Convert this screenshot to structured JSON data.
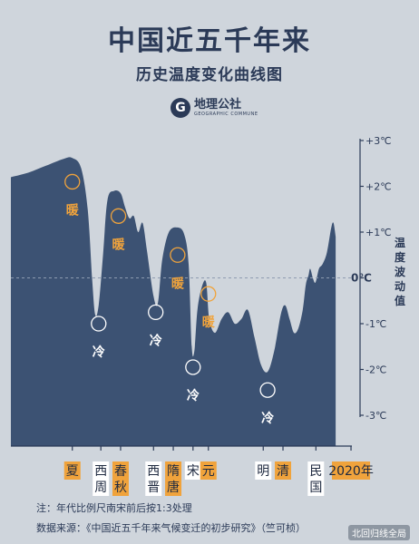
{
  "header": {
    "title": "中国近五千年来",
    "subtitle": "历史温度变化曲线图",
    "logo_mark": "G",
    "logo_name": "地理公社",
    "logo_sub": "GEOGRAPHIC COMMUNE"
  },
  "footer": {
    "note": "注：年代比例尺南宋前后按1:3处理",
    "source": "数据来源：《中国近五千年来气候变迁的初步研究》（竺可桢）",
    "watermark": "北回归线全局"
  },
  "chart_data": {
    "type": "area",
    "title": "中国近五千年来",
    "subtitle": "历史温度变化曲线图",
    "ylabel": "温度波动值",
    "ylim": [
      -3,
      3
    ],
    "yticks": [
      "+3℃",
      "+2℃",
      "+1℃",
      "0℃",
      "-1℃",
      "-2℃",
      "-3℃"
    ],
    "x_range": [
      0,
      100
    ],
    "series": [
      {
        "points": [
          [
            0,
            2.2
          ],
          [
            4,
            2.3
          ],
          [
            8,
            2.45
          ],
          [
            12,
            2.6
          ],
          [
            14,
            2.62
          ],
          [
            16,
            2.4
          ],
          [
            17.5,
            1.5
          ],
          [
            18.5,
            0.0
          ],
          [
            19.2,
            -0.8
          ],
          [
            20,
            -0.6
          ],
          [
            21,
            0.5
          ],
          [
            22,
            1.7
          ],
          [
            23.5,
            1.9
          ],
          [
            25,
            1.85
          ],
          [
            26,
            1.55
          ],
          [
            27,
            1.3
          ],
          [
            28,
            1.35
          ],
          [
            29,
            1.0
          ],
          [
            30,
            1.2
          ],
          [
            31,
            0.6
          ],
          [
            32.5,
            -0.4
          ],
          [
            33.5,
            -0.55
          ],
          [
            34.5,
            0.4
          ],
          [
            36,
            1.0
          ],
          [
            38,
            1.1
          ],
          [
            39.5,
            0.95
          ],
          [
            40.5,
            0.3
          ],
          [
            41.2,
            -1.5
          ],
          [
            41.8,
            -1.6
          ],
          [
            42.5,
            -0.7
          ],
          [
            43.5,
            -0.2
          ],
          [
            44.5,
            -0.1
          ],
          [
            45.2,
            -0.9
          ],
          [
            46.5,
            -1.2
          ],
          [
            48,
            -0.9
          ],
          [
            49.5,
            -0.75
          ],
          [
            51,
            -1.0
          ],
          [
            52.5,
            -0.9
          ],
          [
            54,
            -0.7
          ],
          [
            55.5,
            -1.3
          ],
          [
            57,
            -1.9
          ],
          [
            58.5,
            -2.05
          ],
          [
            60,
            -1.6
          ],
          [
            61.5,
            -0.8
          ],
          [
            62.5,
            -0.6
          ],
          [
            63.5,
            -0.9
          ],
          [
            64.5,
            -1.2
          ],
          [
            65.5,
            -1.1
          ],
          [
            66.5,
            -0.7
          ],
          [
            67.2,
            -0.15
          ],
          [
            67.8,
            0.05
          ],
          [
            68.2,
            0.2
          ],
          [
            68.8,
            0.0
          ],
          [
            69.4,
            -0.1
          ],
          [
            70.2,
            0.2
          ],
          [
            71,
            0.3
          ],
          [
            72,
            0.55
          ],
          [
            73,
            1.1
          ],
          [
            73.5,
            1.2
          ],
          [
            74,
            0.9
          ]
        ]
      }
    ],
    "annotations": [
      {
        "num": "①",
        "state": "暖",
        "x": 14,
        "y": 2.1,
        "color": "#f0a33c"
      },
      {
        "num": "①",
        "state": "冷",
        "x": 20,
        "y": -1.0,
        "color": "#ffffff"
      },
      {
        "num": "②",
        "state": "暖",
        "x": 24.5,
        "y": 1.35,
        "color": "#f0a33c"
      },
      {
        "num": "②",
        "state": "冷",
        "x": 33,
        "y": -0.75,
        "color": "#ffffff"
      },
      {
        "num": "③",
        "state": "暖",
        "x": 38,
        "y": 0.5,
        "color": "#f0a33c"
      },
      {
        "num": "③",
        "state": "冷",
        "x": 41.5,
        "y": -1.95,
        "color": "#ffffff"
      },
      {
        "num": "④",
        "state": "暖",
        "x": 45,
        "y": -0.35,
        "color": "#f0a33c"
      },
      {
        "num": "④",
        "state": "冷",
        "x": 58.5,
        "y": -2.45,
        "color": "#ffffff"
      }
    ],
    "eras": [
      {
        "label": [
          "夏"
        ],
        "x": 14,
        "color": "#f0a33c"
      },
      {
        "label": [
          "西",
          "周"
        ],
        "x": 20.5,
        "color": "#ffffff"
      },
      {
        "label": [
          "春",
          "秋"
        ],
        "x": 25,
        "color": "#f0a33c"
      },
      {
        "label": [
          "西",
          "晋"
        ],
        "x": 32.5,
        "color": "#ffffff"
      },
      {
        "label": [
          "隋",
          "唐"
        ],
        "x": 37,
        "color": "#f0a33c"
      },
      {
        "label": [
          "宋"
        ],
        "x": 41.5,
        "color": "#ffffff"
      },
      {
        "label": [
          "元"
        ],
        "x": 45,
        "color": "#f0a33c"
      },
      {
        "label": [
          "明"
        ],
        "x": 57.5,
        "color": "#ffffff"
      },
      {
        "label": [
          "清"
        ],
        "x": 62,
        "color": "#f0a33c"
      },
      {
        "label": [
          "民",
          "国"
        ],
        "x": 69.5,
        "color": "#ffffff"
      },
      {
        "label": [
          "2020年"
        ],
        "x": 77.5,
        "color": "#f0a33c"
      }
    ],
    "colors": {
      "area": "#3c5273",
      "axis": "#2b3a57",
      "warm": "#f0a33c",
      "cold": "#ffffff"
    },
    "grid": false
  }
}
